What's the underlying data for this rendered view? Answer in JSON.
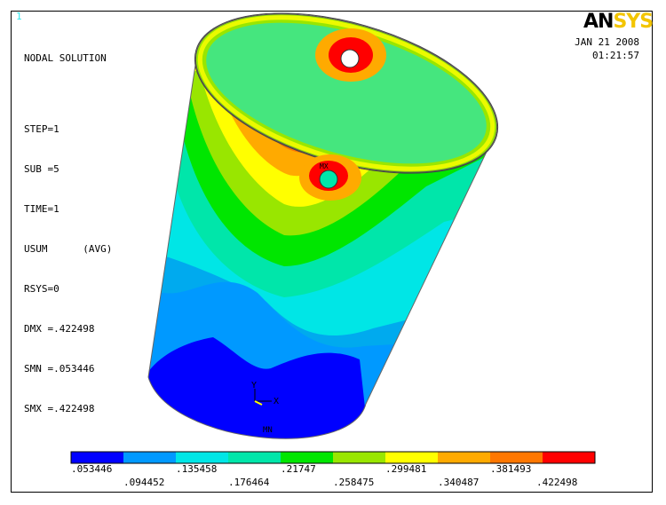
{
  "window_number": "1",
  "logo": {
    "part1": "AN",
    "part2": "SYS"
  },
  "info": {
    "title": "NODAL SOLUTION",
    "lines": [
      "STEP=1",
      "SUB =5",
      "TIME=1",
      "USUM      (AVG)",
      "RSYS=0",
      "DMX =.422498",
      "SMN =.053446",
      "SMX =.422498"
    ]
  },
  "date": "JAN 21 2008",
  "time": "01:21:57",
  "triad": {
    "y": "Y",
    "x": "X"
  },
  "markers": {
    "max": "MX",
    "min": "MN"
  },
  "legend": {
    "colors": [
      "#0000ff",
      "#0099ff",
      "#00e6e6",
      "#00e6aa",
      "#00e600",
      "#99e600",
      "#ffff00",
      "#ffaa00",
      "#ff7700",
      "#ff0000"
    ],
    "upper_labels": [
      ".053446",
      ".135458",
      ".21747",
      ".299481",
      ".381493"
    ],
    "lower_labels": [
      ".094452",
      ".176464",
      ".258475",
      ".340487",
      ".422498"
    ]
  }
}
